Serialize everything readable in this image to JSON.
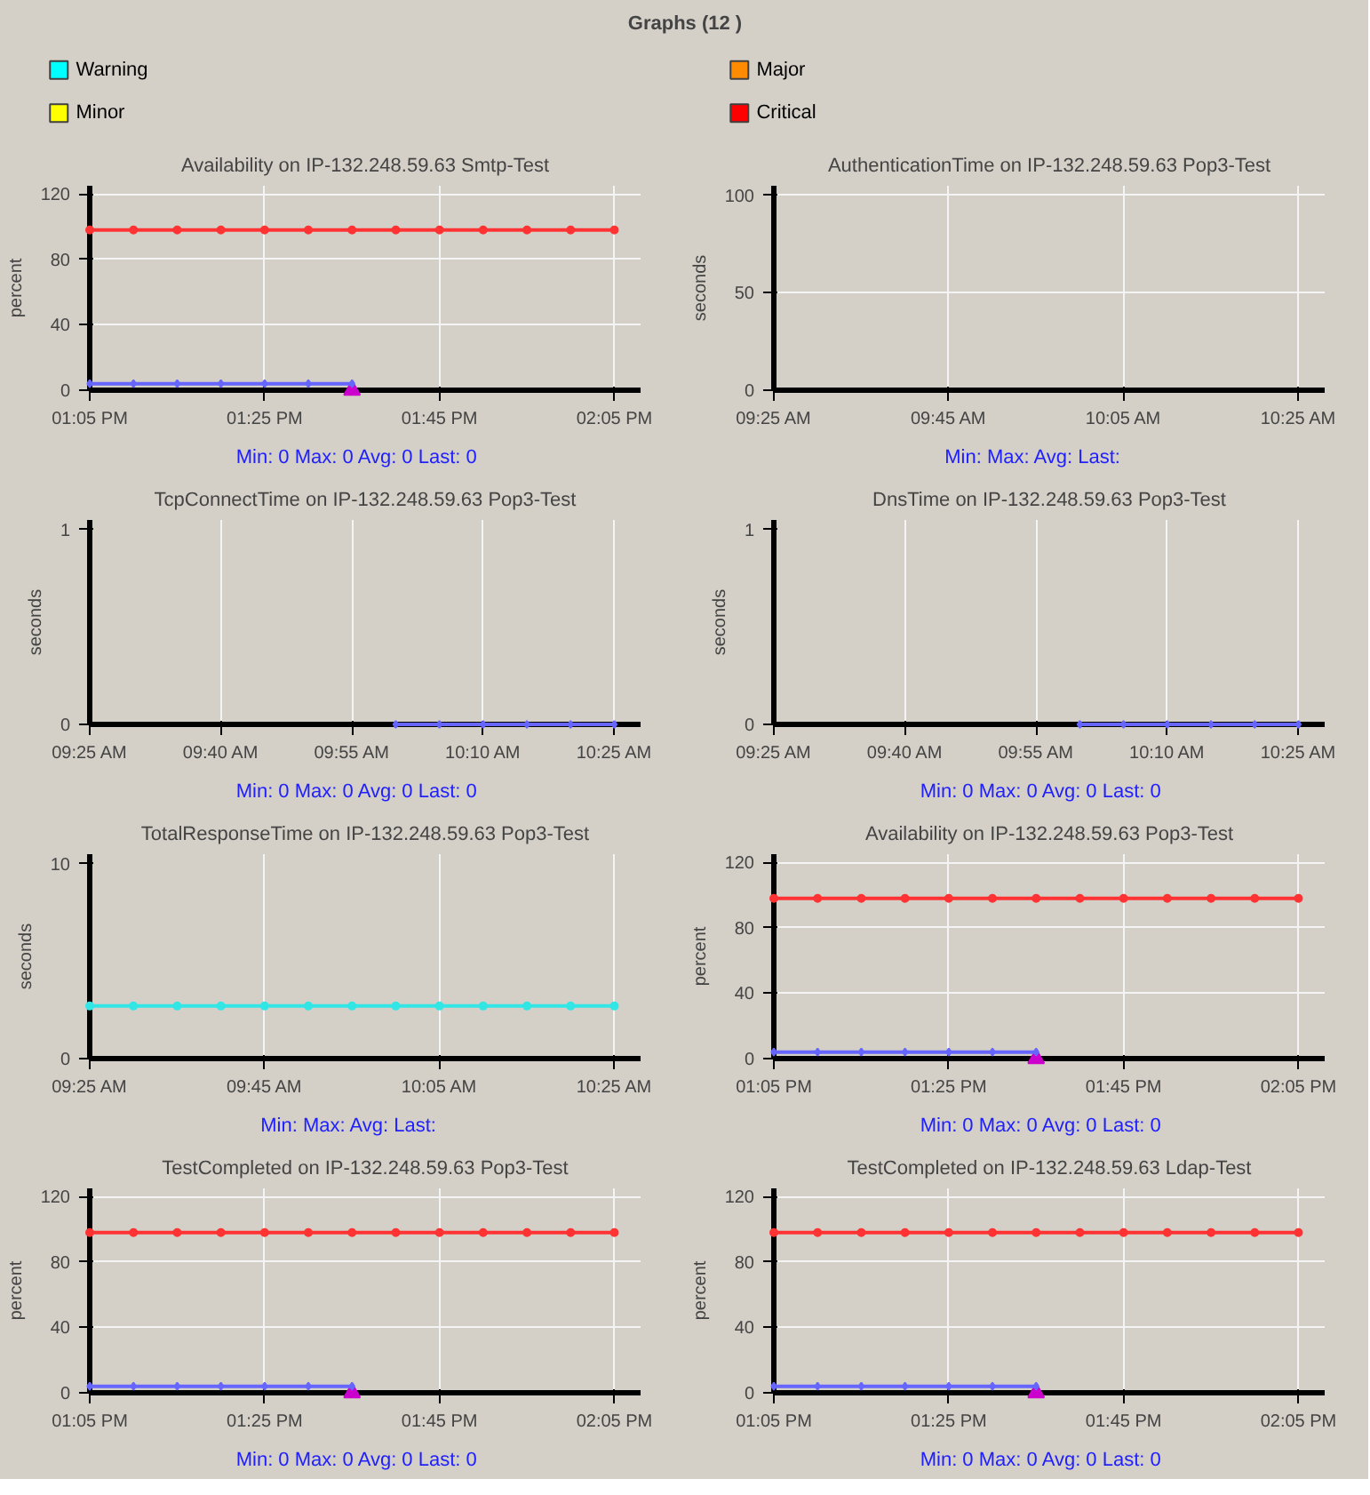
{
  "chart_data": [
    {
      "type": "other",
      "title": "Graphs (12 )",
      "categories": [
        "Warning",
        "Major",
        "Minor",
        "Critical"
      ],
      "colors": [
        "#00ffff",
        "#ff8c00",
        "#ffff00",
        "#ff0000"
      ]
    },
    {
      "type": "line",
      "title": "Availability on IP-132.248.59.63 Smtp-Test",
      "ylabel": "percent",
      "xlim": [
        13.0833,
        14.1333
      ],
      "ylim": [
        0,
        125
      ],
      "xticks": [
        {
          "value": 13.0833,
          "label": "01:05 PM"
        },
        {
          "value": 13.4167,
          "label": "01:25 PM"
        },
        {
          "value": 13.75,
          "label": "01:45 PM"
        },
        {
          "value": 14.0833,
          "label": "02:05 PM"
        }
      ],
      "yticks": [
        0,
        40,
        80,
        120
      ],
      "grid": true,
      "annotations": [
        "Min: 0  Max: 0  Avg: 0  Last: 0"
      ],
      "series": [
        {
          "type": "line",
          "marker": "circle",
          "color": "#ff3333",
          "x": [
            13.0833,
            13.1667,
            13.25,
            13.3333,
            13.4167,
            13.5,
            13.5833,
            13.6667,
            13.75,
            13.8333,
            13.9167,
            14.0,
            14.0833
          ],
          "values": [
            98,
            98,
            98,
            98,
            98,
            98,
            98,
            98,
            98,
            98,
            98,
            98,
            98
          ]
        },
        {
          "type": "line",
          "marker": "diamond",
          "color": "#6666ff",
          "x": [
            13.0833,
            13.1667,
            13.25,
            13.3333,
            13.4167,
            13.5,
            13.5833
          ],
          "values": [
            4,
            4,
            4,
            4,
            4,
            4,
            4
          ]
        },
        {
          "type": "scatter",
          "marker": "triangle",
          "color": "#cc00cc",
          "x": [
            13.5833
          ],
          "values": [
            0
          ]
        }
      ]
    },
    {
      "type": "line",
      "title": "AuthenticationTime on IP-132.248.59.63 Pop3-Test",
      "ylabel": "seconds",
      "xlim": [
        9.4167,
        10.4667
      ],
      "ylim": [
        0,
        105
      ],
      "xticks": [
        {
          "value": 9.4167,
          "label": "09:25 AM"
        },
        {
          "value": 9.75,
          "label": "09:45 AM"
        },
        {
          "value": 10.0833,
          "label": "10:05 AM"
        },
        {
          "value": 10.4167,
          "label": "10:25 AM"
        }
      ],
      "yticks": [
        0,
        50,
        100
      ],
      "grid": true,
      "annotations": [
        "Min:   Max:   Avg:   Last:"
      ]
    },
    {
      "type": "line",
      "title": "TcpConnectTime on IP-132.248.59.63 Pop3-Test",
      "ylabel": "seconds",
      "xlim": [
        9.4167,
        10.4667
      ],
      "ylim": [
        0,
        1.05
      ],
      "xticks": [
        {
          "value": 9.4167,
          "label": "09:25 AM"
        },
        {
          "value": 9.6667,
          "label": "09:40 AM"
        },
        {
          "value": 9.9167,
          "label": "09:55 AM"
        },
        {
          "value": 10.1667,
          "label": "10:10 AM"
        },
        {
          "value": 10.4167,
          "label": "10:25 AM"
        }
      ],
      "yticks": [
        0,
        1
      ],
      "grid": "x",
      "annotations": [
        "Min: 0  Max: 0  Avg: 0  Last: 0"
      ],
      "series": [
        {
          "type": "line",
          "marker": "diamond",
          "color": "#6666ff",
          "x": [
            10.0,
            10.0833,
            10.1667,
            10.25,
            10.3333,
            10.4167
          ],
          "values": [
            0,
            0,
            0,
            0,
            0,
            0
          ]
        }
      ]
    },
    {
      "type": "line",
      "title": "DnsTime on IP-132.248.59.63 Pop3-Test",
      "ylabel": "seconds",
      "xlim": [
        9.4167,
        10.4667
      ],
      "ylim": [
        0,
        1.05
      ],
      "xticks": [
        {
          "value": 9.4167,
          "label": "09:25 AM"
        },
        {
          "value": 9.6667,
          "label": "09:40 AM"
        },
        {
          "value": 9.9167,
          "label": "09:55 AM"
        },
        {
          "value": 10.1667,
          "label": "10:10 AM"
        },
        {
          "value": 10.4167,
          "label": "10:25 AM"
        }
      ],
      "yticks": [
        0,
        1
      ],
      "grid": "x",
      "annotations": [
        "Min: 0  Max: 0  Avg: 0  Last: 0"
      ],
      "series": [
        {
          "type": "line",
          "marker": "diamond",
          "color": "#6666ff",
          "x": [
            10.0,
            10.0833,
            10.1667,
            10.25,
            10.3333,
            10.4167
          ],
          "values": [
            0,
            0,
            0,
            0,
            0,
            0
          ]
        }
      ]
    },
    {
      "type": "line",
      "title": "TotalResponseTime on IP-132.248.59.63 Pop3-Test",
      "ylabel": "seconds",
      "xlim": [
        9.4167,
        10.4667
      ],
      "ylim": [
        0,
        10.5
      ],
      "xticks": [
        {
          "value": 9.4167,
          "label": "09:25 AM"
        },
        {
          "value": 9.75,
          "label": "09:45 AM"
        },
        {
          "value": 10.0833,
          "label": "10:05 AM"
        },
        {
          "value": 10.4167,
          "label": "10:25 AM"
        }
      ],
      "yticks": [
        0,
        10
      ],
      "grid": "x",
      "annotations": [
        "Min:   Max:   Avg:   Last:"
      ],
      "series": [
        {
          "type": "line",
          "marker": "circle",
          "color": "#33e6e6",
          "x": [
            9.4167,
            9.5,
            9.5833,
            9.6667,
            9.75,
            9.8333,
            9.9167,
            10.0,
            10.0833,
            10.1667,
            10.25,
            10.3333,
            10.4167
          ],
          "values": [
            2.7,
            2.7,
            2.7,
            2.7,
            2.7,
            2.7,
            2.7,
            2.7,
            2.7,
            2.7,
            2.7,
            2.7,
            2.7
          ]
        }
      ]
    },
    {
      "type": "line",
      "title": "Availability on IP-132.248.59.63 Pop3-Test",
      "ylabel": "percent",
      "xlim": [
        13.0833,
        14.1333
      ],
      "ylim": [
        0,
        125
      ],
      "xticks": [
        {
          "value": 13.0833,
          "label": "01:05 PM"
        },
        {
          "value": 13.4167,
          "label": "01:25 PM"
        },
        {
          "value": 13.75,
          "label": "01:45 PM"
        },
        {
          "value": 14.0833,
          "label": "02:05 PM"
        }
      ],
      "yticks": [
        0,
        40,
        80,
        120
      ],
      "grid": true,
      "annotations": [
        "Min: 0  Max: 0  Avg: 0  Last: 0"
      ],
      "series": [
        {
          "type": "line",
          "marker": "circle",
          "color": "#ff3333",
          "x": [
            13.0833,
            13.1667,
            13.25,
            13.3333,
            13.4167,
            13.5,
            13.5833,
            13.6667,
            13.75,
            13.8333,
            13.9167,
            14.0,
            14.0833
          ],
          "values": [
            98,
            98,
            98,
            98,
            98,
            98,
            98,
            98,
            98,
            98,
            98,
            98,
            98
          ]
        },
        {
          "type": "line",
          "marker": "diamond",
          "color": "#6666ff",
          "x": [
            13.0833,
            13.1667,
            13.25,
            13.3333,
            13.4167,
            13.5,
            13.5833
          ],
          "values": [
            4,
            4,
            4,
            4,
            4,
            4,
            4
          ]
        },
        {
          "type": "scatter",
          "marker": "triangle",
          "color": "#cc00cc",
          "x": [
            13.5833
          ],
          "values": [
            0
          ]
        }
      ]
    },
    {
      "type": "line",
      "title": "TestCompleted on IP-132.248.59.63 Pop3-Test",
      "ylabel": "percent",
      "xlim": [
        13.0833,
        14.1333
      ],
      "ylim": [
        0,
        125
      ],
      "xticks": [
        {
          "value": 13.0833,
          "label": "01:05 PM"
        },
        {
          "value": 13.4167,
          "label": "01:25 PM"
        },
        {
          "value": 13.75,
          "label": "01:45 PM"
        },
        {
          "value": 14.0833,
          "label": "02:05 PM"
        }
      ],
      "yticks": [
        0,
        40,
        80,
        120
      ],
      "grid": true,
      "annotations": [
        "Min: 0  Max: 0  Avg: 0  Last: 0"
      ],
      "series": [
        {
          "type": "line",
          "marker": "circle",
          "color": "#ff3333",
          "x": [
            13.0833,
            13.1667,
            13.25,
            13.3333,
            13.4167,
            13.5,
            13.5833,
            13.6667,
            13.75,
            13.8333,
            13.9167,
            14.0,
            14.0833
          ],
          "values": [
            98,
            98,
            98,
            98,
            98,
            98,
            98,
            98,
            98,
            98,
            98,
            98,
            98
          ]
        },
        {
          "type": "line",
          "marker": "diamond",
          "color": "#6666ff",
          "x": [
            13.0833,
            13.1667,
            13.25,
            13.3333,
            13.4167,
            13.5,
            13.5833
          ],
          "values": [
            4,
            4,
            4,
            4,
            4,
            4,
            4
          ]
        },
        {
          "type": "scatter",
          "marker": "triangle",
          "color": "#cc00cc",
          "x": [
            13.5833
          ],
          "values": [
            0
          ]
        }
      ]
    },
    {
      "type": "line",
      "title": "TestCompleted on IP-132.248.59.63 Ldap-Test",
      "ylabel": "percent",
      "xlim": [
        13.0833,
        14.1333
      ],
      "ylim": [
        0,
        125
      ],
      "xticks": [
        {
          "value": 13.0833,
          "label": "01:05 PM"
        },
        {
          "value": 13.4167,
          "label": "01:25 PM"
        },
        {
          "value": 13.75,
          "label": "01:45 PM"
        },
        {
          "value": 14.0833,
          "label": "02:05 PM"
        }
      ],
      "yticks": [
        0,
        40,
        80,
        120
      ],
      "grid": true,
      "annotations": [
        "Min: 0  Max: 0  Avg: 0  Last: 0"
      ],
      "series": [
        {
          "type": "line",
          "marker": "circle",
          "color": "#ff3333",
          "x": [
            13.0833,
            13.1667,
            13.25,
            13.3333,
            13.4167,
            13.5,
            13.5833,
            13.6667,
            13.75,
            13.8333,
            13.9167,
            14.0,
            14.0833
          ],
          "values": [
            98,
            98,
            98,
            98,
            98,
            98,
            98,
            98,
            98,
            98,
            98,
            98,
            98
          ]
        },
        {
          "type": "line",
          "marker": "diamond",
          "color": "#6666ff",
          "x": [
            13.0833,
            13.1667,
            13.25,
            13.3333,
            13.4167,
            13.5,
            13.5833
          ],
          "values": [
            4,
            4,
            4,
            4,
            4,
            4,
            4
          ]
        },
        {
          "type": "scatter",
          "marker": "triangle",
          "color": "#cc00cc",
          "x": [
            13.5833
          ],
          "values": [
            0
          ]
        }
      ]
    }
  ]
}
